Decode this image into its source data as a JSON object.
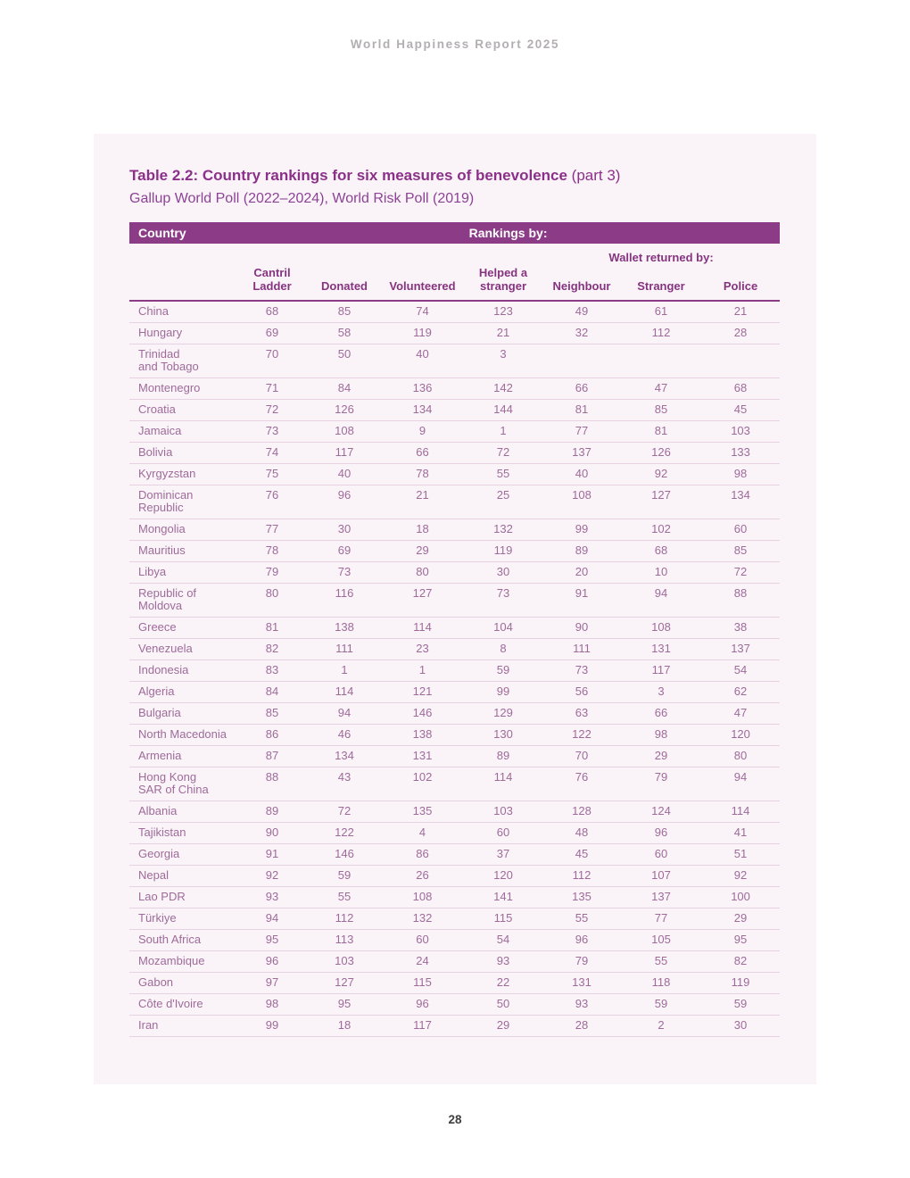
{
  "page": {
    "running_header": "World Happiness Report 2025",
    "page_number": "28"
  },
  "table": {
    "title_bold": "Table 2.2: Country rankings for six measures of benevolence",
    "title_suffix": " (part 3)",
    "subtitle": "Gallup World Poll (2022–2024), World Risk Poll (2019)",
    "bar": {
      "country_label": "Country",
      "rankings_label": "Rankings by:"
    },
    "wallet_group_label": "Wallet returned by:",
    "columns": [
      "Cantril\nLadder",
      "Donated",
      "Volunteered",
      "Helped a\nstranger",
      "Neighbour",
      "Stranger",
      "Police"
    ],
    "accent_color": "#8c3c87",
    "rows": [
      {
        "country": "China",
        "values": [
          "68",
          "85",
          "74",
          "123",
          "49",
          "61",
          "21"
        ]
      },
      {
        "country": "Hungary",
        "values": [
          "69",
          "58",
          "119",
          "21",
          "32",
          "112",
          "28"
        ]
      },
      {
        "country": "Trinidad\nand Tobago",
        "values": [
          "70",
          "50",
          "40",
          "3",
          "",
          "",
          ""
        ]
      },
      {
        "country": "Montenegro",
        "values": [
          "71",
          "84",
          "136",
          "142",
          "66",
          "47",
          "68"
        ]
      },
      {
        "country": "Croatia",
        "values": [
          "72",
          "126",
          "134",
          "144",
          "81",
          "85",
          "45"
        ]
      },
      {
        "country": "Jamaica",
        "values": [
          "73",
          "108",
          "9",
          "1",
          "77",
          "81",
          "103"
        ]
      },
      {
        "country": "Bolivia",
        "values": [
          "74",
          "117",
          "66",
          "72",
          "137",
          "126",
          "133"
        ]
      },
      {
        "country": "Kyrgyzstan",
        "values": [
          "75",
          "40",
          "78",
          "55",
          "40",
          "92",
          "98"
        ]
      },
      {
        "country": "Dominican\nRepublic",
        "values": [
          "76",
          "96",
          "21",
          "25",
          "108",
          "127",
          "134"
        ]
      },
      {
        "country": "Mongolia",
        "values": [
          "77",
          "30",
          "18",
          "132",
          "99",
          "102",
          "60"
        ]
      },
      {
        "country": "Mauritius",
        "values": [
          "78",
          "69",
          "29",
          "119",
          "89",
          "68",
          "85"
        ]
      },
      {
        "country": "Libya",
        "values": [
          "79",
          "73",
          "80",
          "30",
          "20",
          "10",
          "72"
        ]
      },
      {
        "country": "Republic of\nMoldova",
        "values": [
          "80",
          "116",
          "127",
          "73",
          "91",
          "94",
          "88"
        ]
      },
      {
        "country": "Greece",
        "values": [
          "81",
          "138",
          "114",
          "104",
          "90",
          "108",
          "38"
        ]
      },
      {
        "country": "Venezuela",
        "values": [
          "82",
          "111",
          "23",
          "8",
          "111",
          "131",
          "137"
        ]
      },
      {
        "country": "Indonesia",
        "values": [
          "83",
          "1",
          "1",
          "59",
          "73",
          "117",
          "54"
        ]
      },
      {
        "country": "Algeria",
        "values": [
          "84",
          "114",
          "121",
          "99",
          "56",
          "3",
          "62"
        ]
      },
      {
        "country": "Bulgaria",
        "values": [
          "85",
          "94",
          "146",
          "129",
          "63",
          "66",
          "47"
        ]
      },
      {
        "country": "North Macedonia",
        "values": [
          "86",
          "46",
          "138",
          "130",
          "122",
          "98",
          "120"
        ]
      },
      {
        "country": "Armenia",
        "values": [
          "87",
          "134",
          "131",
          "89",
          "70",
          "29",
          "80"
        ]
      },
      {
        "country": "Hong Kong\nSAR of China",
        "values": [
          "88",
          "43",
          "102",
          "114",
          "76",
          "79",
          "94"
        ]
      },
      {
        "country": "Albania",
        "values": [
          "89",
          "72",
          "135",
          "103",
          "128",
          "124",
          "114"
        ]
      },
      {
        "country": "Tajikistan",
        "values": [
          "90",
          "122",
          "4",
          "60",
          "48",
          "96",
          "41"
        ]
      },
      {
        "country": "Georgia",
        "values": [
          "91",
          "146",
          "86",
          "37",
          "45",
          "60",
          "51"
        ]
      },
      {
        "country": "Nepal",
        "values": [
          "92",
          "59",
          "26",
          "120",
          "112",
          "107",
          "92"
        ]
      },
      {
        "country": "Lao PDR",
        "values": [
          "93",
          "55",
          "108",
          "141",
          "135",
          "137",
          "100"
        ]
      },
      {
        "country": "Türkiye",
        "values": [
          "94",
          "112",
          "132",
          "115",
          "55",
          "77",
          "29"
        ]
      },
      {
        "country": "South Africa",
        "values": [
          "95",
          "113",
          "60",
          "54",
          "96",
          "105",
          "95"
        ]
      },
      {
        "country": "Mozambique",
        "values": [
          "96",
          "103",
          "24",
          "93",
          "79",
          "55",
          "82"
        ]
      },
      {
        "country": "Gabon",
        "values": [
          "97",
          "127",
          "115",
          "22",
          "131",
          "118",
          "119"
        ]
      },
      {
        "country": "Côte d'Ivoire",
        "values": [
          "98",
          "95",
          "96",
          "50",
          "93",
          "59",
          "59"
        ]
      },
      {
        "country": "Iran",
        "values": [
          "99",
          "18",
          "117",
          "29",
          "28",
          "2",
          "30"
        ]
      }
    ]
  }
}
